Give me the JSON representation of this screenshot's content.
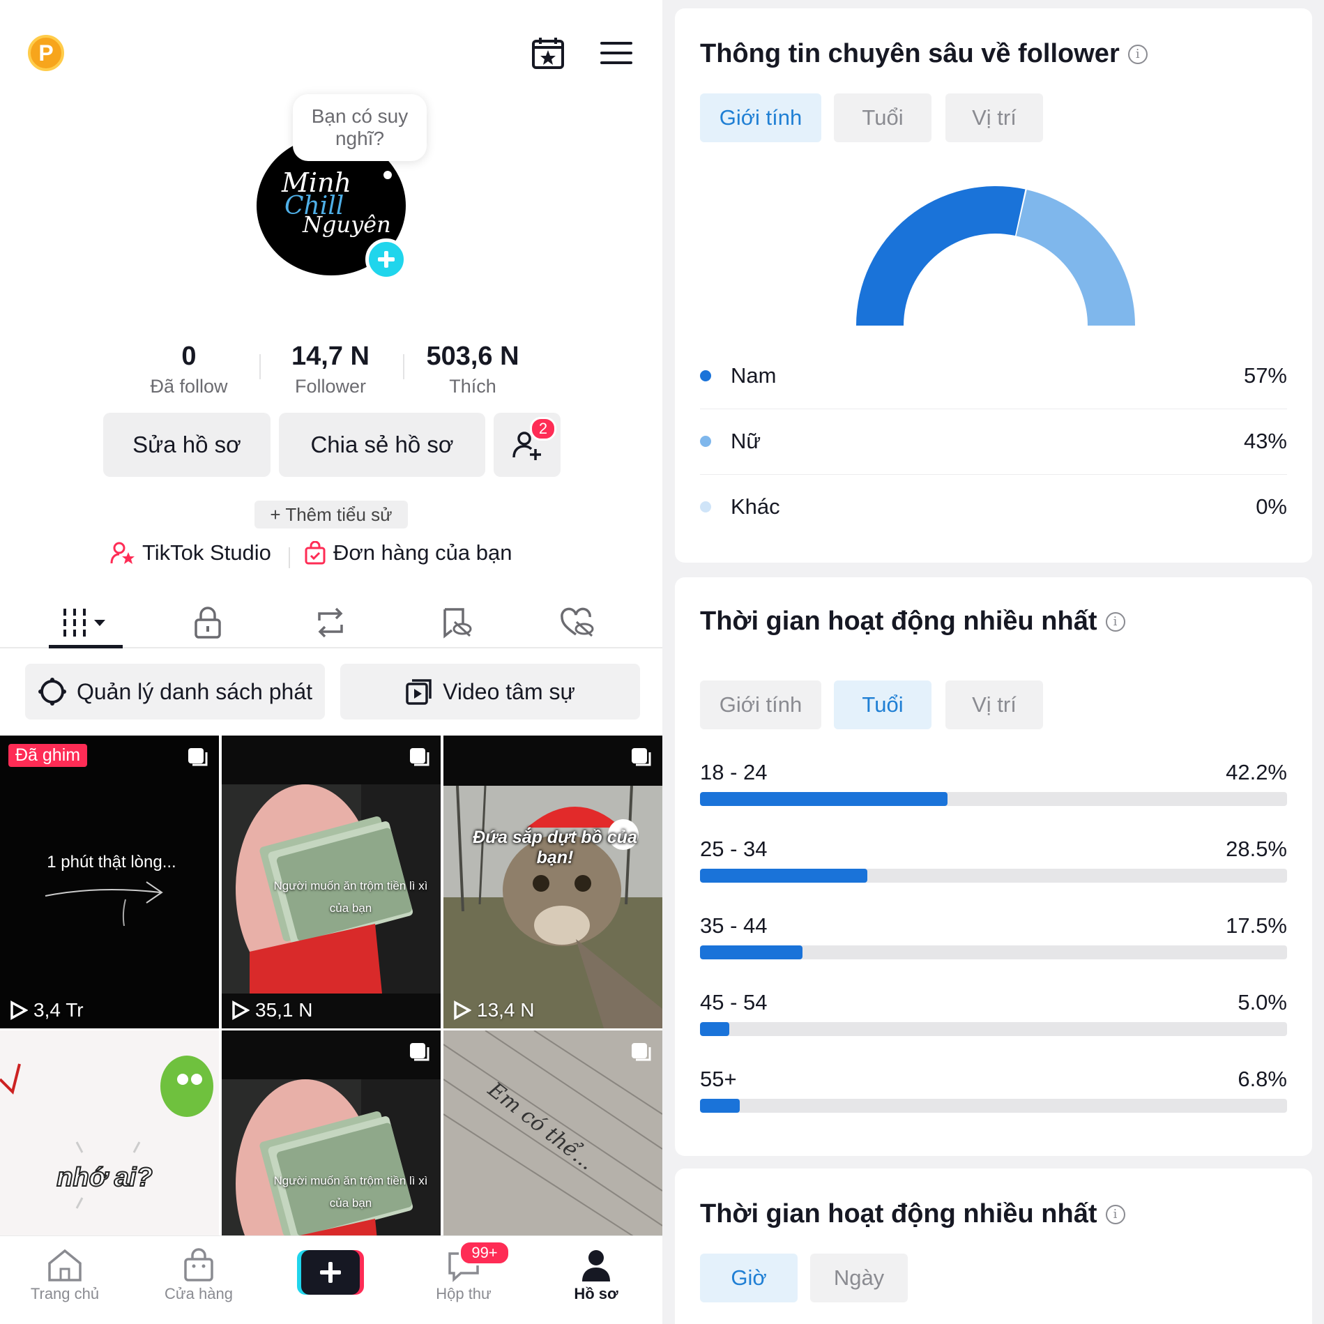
{
  "profile": {
    "coin_label": "P",
    "bubble_text": "Bạn có suy nghĩ?",
    "avatar_text": {
      "line1": "Minh",
      "line2": "Chill",
      "line3": "Nguyên"
    },
    "stats": [
      {
        "value": "0",
        "label": "Đã follow"
      },
      {
        "value": "14,7 N",
        "label": "Follower"
      },
      {
        "value": "503,6 N",
        "label": "Thích"
      }
    ],
    "edit_button": "Sửa hồ sơ",
    "share_button": "Chia sẻ hồ sơ",
    "friends_badge": "2",
    "add_bio": "+ Thêm tiểu sử",
    "studio_link": "TikTok Studio",
    "orders_link": "Đơn hàng của bạn",
    "playlist_button": "Quản lý danh sách phát",
    "story_video_button": "Video tâm sự"
  },
  "videos": [
    {
      "pinned": "Đã ghim",
      "caption": "1 phút thật lòng...",
      "views": "3,4 Tr"
    },
    {
      "caption": "Người muốn ăn trộm tiền lì xì của bạn",
      "views": "35,1 N"
    },
    {
      "caption": "Đứa sắp dựt bồ của bạn!",
      "views": "13,4 N"
    },
    {
      "caption": "nhớ ai?",
      "views": ""
    },
    {
      "caption": "Người muốn ăn trộm tiền lì xì của bạn",
      "views": ""
    },
    {
      "caption": "Em có thể...",
      "views": ""
    }
  ],
  "bottom_nav": [
    {
      "label": "Trang chủ",
      "icon": "home-icon"
    },
    {
      "label": "Cửa hàng",
      "icon": "shop-icon"
    },
    {
      "label": "",
      "icon": "create-icon"
    },
    {
      "label": "Hộp thư",
      "icon": "inbox-icon",
      "badge": "99+"
    },
    {
      "label": "Hồ sơ",
      "icon": "profile-icon"
    }
  ],
  "follower_insights": {
    "title": "Thông tin chuyên sâu về follower",
    "tabs": [
      "Giới tính",
      "Tuổi",
      "Vị trí"
    ],
    "active_tab": "Giới tính",
    "gender": [
      {
        "label": "Nam",
        "percent_text": "57%",
        "value": 57,
        "color": "#1a73d9"
      },
      {
        "label": "Nữ",
        "percent_text": "43%",
        "value": 43,
        "color": "#7fb7ec"
      },
      {
        "label": "Khác",
        "percent_text": "0%",
        "value": 0,
        "color": "#cfe4f8"
      }
    ]
  },
  "activity_age": {
    "title": "Thời gian hoạt động nhiều nhất",
    "tabs": [
      "Giới tính",
      "Tuổi",
      "Vị trí"
    ],
    "active_tab": "Tuổi",
    "ages": [
      {
        "label": "18 - 24",
        "percent_text": "42.2%",
        "value": 42.2
      },
      {
        "label": "25 - 34",
        "percent_text": "28.5%",
        "value": 28.5
      },
      {
        "label": "35 - 44",
        "percent_text": "17.5%",
        "value": 17.5
      },
      {
        "label": "45 - 54",
        "percent_text": "5.0%",
        "value": 5.0
      },
      {
        "label": "55+",
        "percent_text": "6.8%",
        "value": 6.8
      }
    ]
  },
  "activity_time": {
    "title": "Thời gian hoạt động nhiều nhất",
    "tabs": [
      "Giờ",
      "Ngày"
    ],
    "active_tab": "Giờ"
  },
  "chart_data": [
    {
      "type": "pie",
      "categories": [
        "Nam",
        "Nữ",
        "Khác"
      ],
      "values": [
        57,
        43,
        0
      ]
    },
    {
      "type": "bar",
      "categories": [
        "18 - 24",
        "25 - 34",
        "35 - 44",
        "45 - 54",
        "55+"
      ],
      "values": [
        42.2,
        28.5,
        17.5,
        5.0,
        6.8
      ],
      "ylim": [
        0,
        100
      ]
    }
  ]
}
